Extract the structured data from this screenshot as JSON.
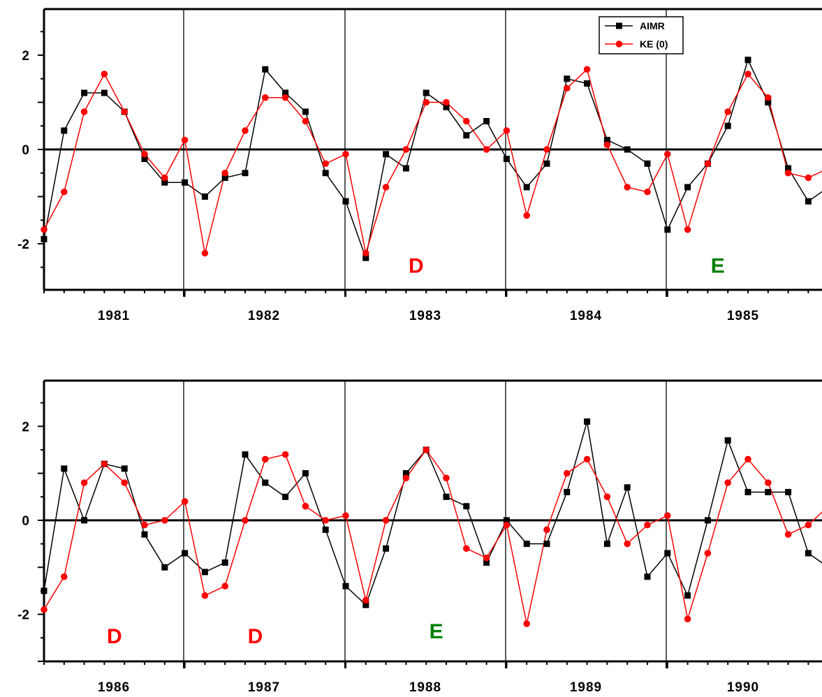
{
  "colors": {
    "aimr": "#000000",
    "ke": "#ff0000",
    "annot_D": "#ff0000",
    "annot_E": "#008000"
  },
  "legend": {
    "aimr_label": "AIMR",
    "ke_label": "KE (0)",
    "placement": "top-right"
  },
  "chart_data": [
    {
      "type": "line",
      "ylim": [
        -3,
        3
      ],
      "yticks": [
        "2",
        "0",
        "-2"
      ],
      "ytick_values": [
        2,
        0,
        -2
      ],
      "year_labels": [
        "1981",
        "1982",
        "1983",
        "1984",
        "1985"
      ],
      "annotations": [
        {
          "text": "D",
          "color": "#ff0000",
          "month": 18.5,
          "y": -2.45
        },
        {
          "text": "E",
          "color": "#008000",
          "month": 33.5,
          "y": -2.45
        }
      ],
      "series": [
        {
          "name": "AIMR",
          "color": "#000000",
          "marker": "square",
          "values": [
            -1.9,
            0.4,
            1.2,
            1.2,
            0.8,
            -0.2,
            -0.7,
            -0.7,
            -1.0,
            -0.6,
            -0.5,
            1.7,
            1.2,
            0.8,
            -0.5,
            -1.1,
            -2.3,
            -0.1,
            -0.4,
            1.2,
            0.9,
            0.3,
            0.6,
            -0.2,
            -0.8,
            -0.3,
            1.5,
            1.4,
            0.2,
            0.0,
            -0.3,
            -1.7,
            -0.8,
            -0.3,
            0.5,
            1.9,
            1.0,
            -0.4,
            -1.1,
            -0.8
          ]
        },
        {
          "name": "KE (0)",
          "color": "#ff0000",
          "marker": "circle",
          "values": [
            -1.7,
            -0.9,
            0.8,
            1.6,
            0.8,
            -0.1,
            -0.6,
            0.2,
            -2.2,
            -0.5,
            0.4,
            1.1,
            1.1,
            0.6,
            -0.3,
            -0.1,
            -2.2,
            -0.8,
            0.0,
            1.0,
            1.0,
            0.6,
            0.0,
            0.4,
            -1.4,
            0.0,
            1.3,
            1.7,
            0.1,
            -0.8,
            -0.9,
            -0.1,
            -1.7,
            -0.3,
            0.8,
            1.6,
            1.1,
            -0.5,
            -0.6,
            -0.4
          ]
        }
      ]
    },
    {
      "type": "line",
      "ylim": [
        -3,
        3
      ],
      "yticks": [
        "2",
        "0",
        "-2"
      ],
      "ytick_values": [
        2,
        0,
        -2
      ],
      "year_labels": [
        "1986",
        "1987",
        "1988",
        "1989",
        "1990"
      ],
      "annotations": [
        {
          "text": "D",
          "color": "#ff0000",
          "month": 3.5,
          "y": -2.45
        },
        {
          "text": "D",
          "color": "#ff0000",
          "month": 10.5,
          "y": -2.45
        },
        {
          "text": "E",
          "color": "#008000",
          "month": 19.5,
          "y": -2.35
        }
      ],
      "series": [
        {
          "name": "AIMR",
          "color": "#000000",
          "marker": "square",
          "values": [
            -1.5,
            1.1,
            0.0,
            1.2,
            1.1,
            -0.3,
            -1.0,
            -0.7,
            -1.1,
            -0.9,
            1.4,
            0.8,
            0.5,
            1.0,
            -0.2,
            -1.4,
            -1.8,
            -0.6,
            1.0,
            1.5,
            0.5,
            0.3,
            -0.9,
            0.0,
            -0.5,
            -0.5,
            0.6,
            2.1,
            -0.5,
            0.7,
            -1.2,
            -0.7,
            -1.6,
            0.0,
            1.7,
            0.6,
            0.6,
            0.6,
            -0.7,
            -1.0
          ]
        },
        {
          "name": "KE (0)",
          "color": "#ff0000",
          "marker": "circle",
          "values": [
            -1.9,
            -1.2,
            0.8,
            1.2,
            0.8,
            -0.1,
            0.0,
            0.4,
            -1.6,
            -1.4,
            0.0,
            1.3,
            1.4,
            0.3,
            0.0,
            0.1,
            -1.7,
            0.0,
            0.9,
            1.5,
            0.9,
            -0.6,
            -0.8,
            -0.1,
            -2.2,
            -0.2,
            1.0,
            1.3,
            0.5,
            -0.5,
            -0.1,
            0.1,
            -2.1,
            -0.7,
            0.8,
            1.3,
            0.8,
            -0.3,
            -0.1,
            0.3
          ]
        }
      ]
    }
  ]
}
